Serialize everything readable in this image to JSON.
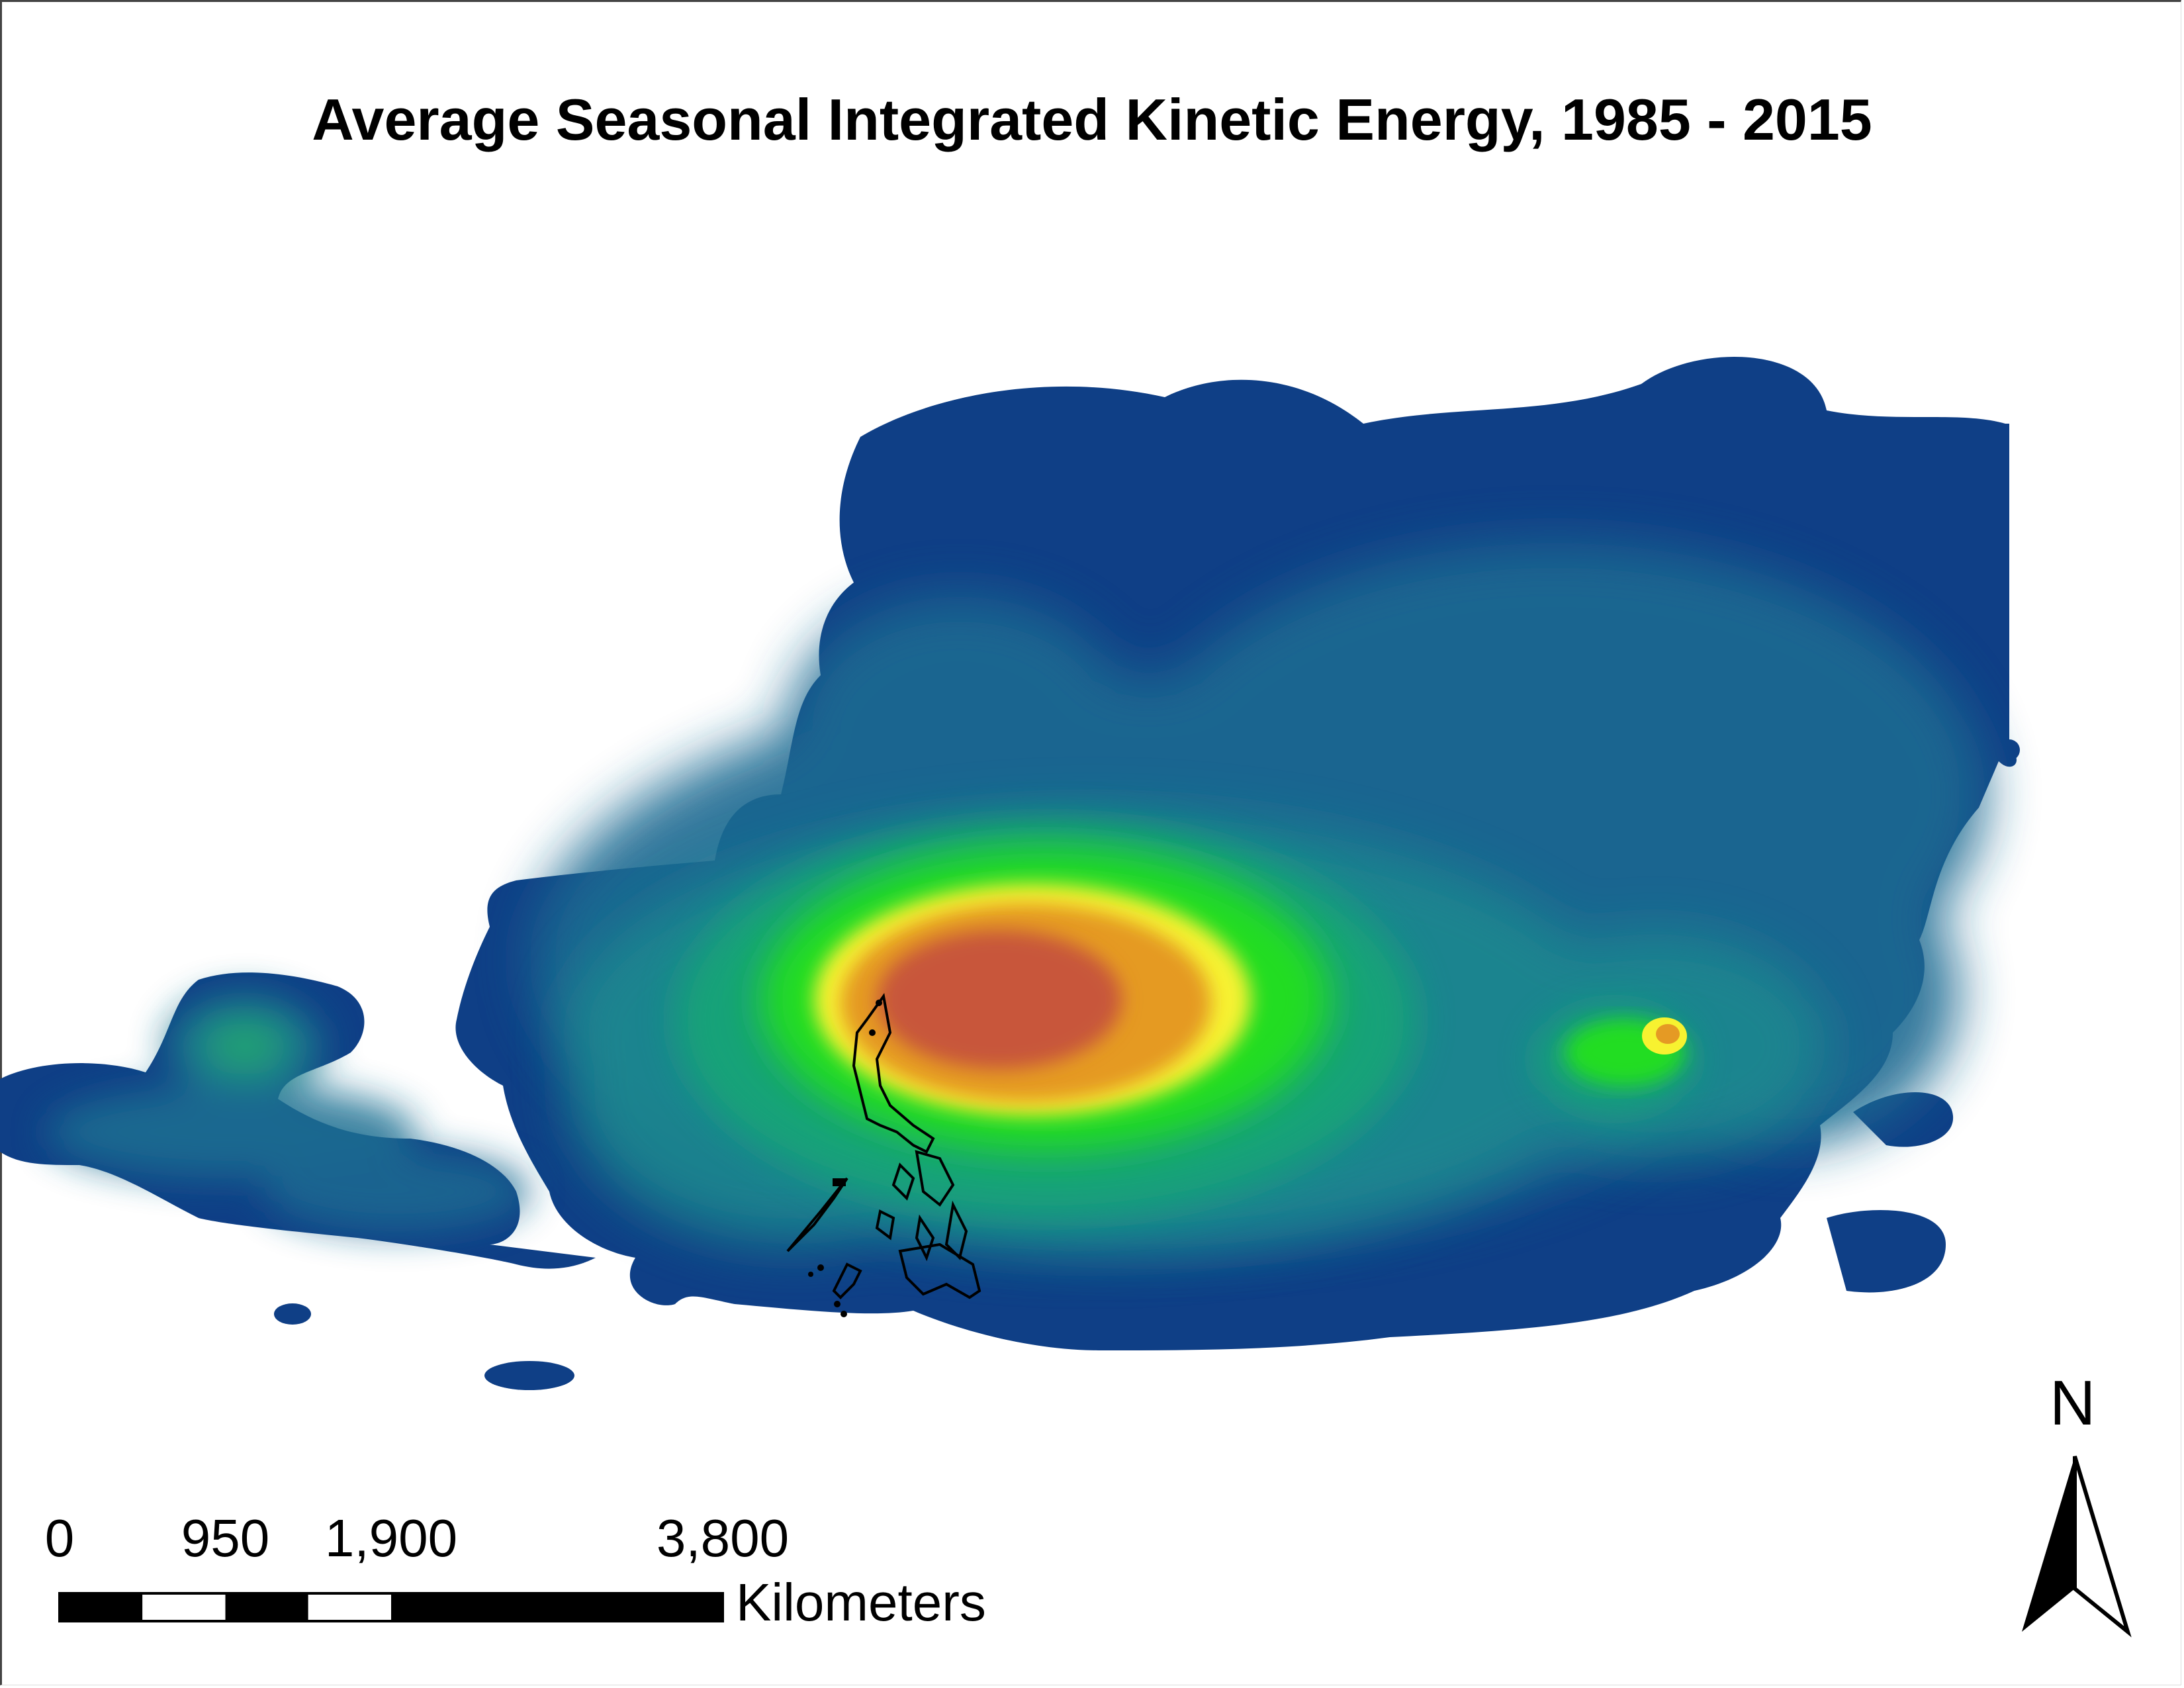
{
  "title": "Average Seasonal Integrated Kinetic Energy, 1985 - 2015",
  "scale_bar": {
    "ticks": [
      "0",
      "950",
      "1,900",
      "3,800"
    ],
    "tick_values_km": [
      0,
      950,
      1900,
      3800
    ],
    "units": "Kilometers"
  },
  "north_arrow": {
    "label": "N"
  },
  "colors": {
    "low": "#0f3f86",
    "mid_low": "#1f7d9a",
    "mid": "#18b66c",
    "green": "#22dd22",
    "yellow": "#f7f230",
    "orange": "#e59a24",
    "high": "#c8563a",
    "outline": "#000000"
  }
}
